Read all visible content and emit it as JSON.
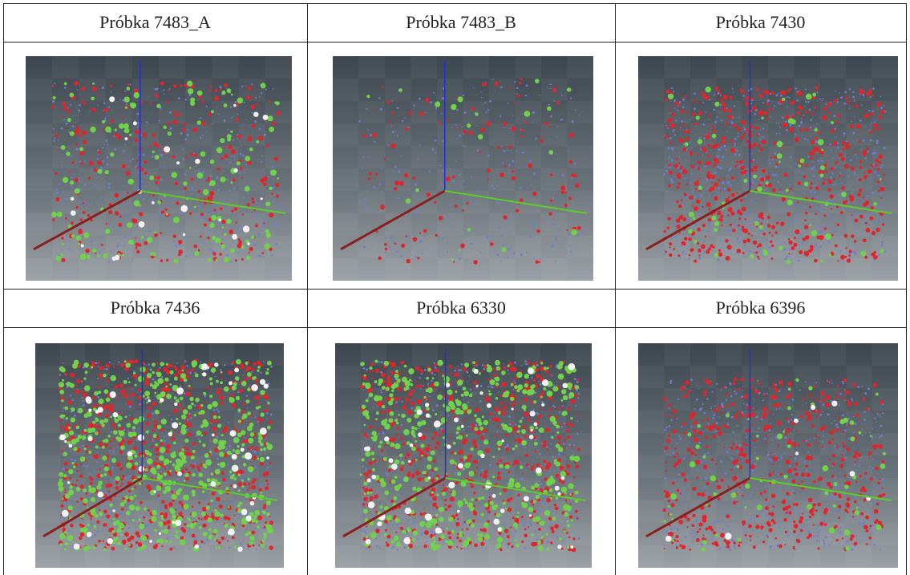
{
  "table": {
    "rows": [
      [
        "Próbka 7483_A",
        "Próbka 7483_B",
        "Próbka 7430"
      ],
      [
        "Próbka 7436",
        "Próbka 6330",
        "Próbka 6396"
      ]
    ]
  }
}
